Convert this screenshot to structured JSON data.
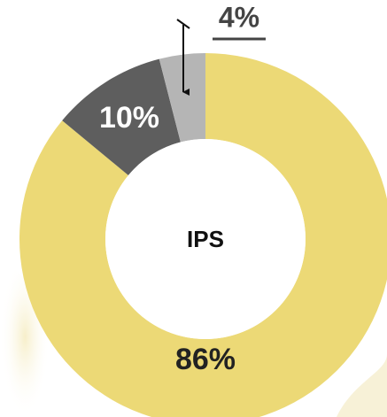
{
  "chart_data": {
    "type": "donut",
    "center_label": "IPS",
    "values": [
      86,
      10,
      4
    ],
    "value_labels": [
      "86%",
      "10%",
      "4%"
    ],
    "colors": [
      "#ecd976",
      "#5e5e5e",
      "#b5b5b5"
    ]
  }
}
